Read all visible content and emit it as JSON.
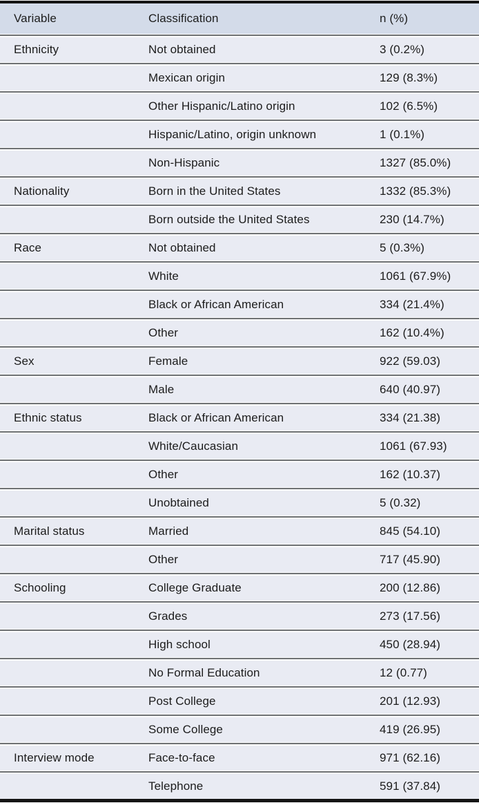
{
  "table": {
    "headers": [
      "Variable",
      "Classification",
      "n (%)"
    ],
    "rows": [
      {
        "variable": "Ethnicity",
        "classification": "Not obtained",
        "n_pct": "3 (0.2%)"
      },
      {
        "variable": "",
        "classification": "Mexican origin",
        "n_pct": "129 (8.3%)"
      },
      {
        "variable": "",
        "classification": "Other Hispanic/Latino origin",
        "n_pct": "102 (6.5%)"
      },
      {
        "variable": "",
        "classification": "Hispanic/Latino, origin unknown",
        "n_pct": "1 (0.1%)"
      },
      {
        "variable": "",
        "classification": "Non-Hispanic",
        "n_pct": "1327 (85.0%)"
      },
      {
        "variable": "Nationality",
        "classification": "Born in the United States",
        "n_pct": "1332 (85.3%)"
      },
      {
        "variable": "",
        "classification": "Born outside the United States",
        "n_pct": "230 (14.7%)"
      },
      {
        "variable": "Race",
        "classification": "Not obtained",
        "n_pct": "5 (0.3%)"
      },
      {
        "variable": "",
        "classification": "White",
        "n_pct": "1061 (67.9%)"
      },
      {
        "variable": "",
        "classification": "Black or African American",
        "n_pct": "334 (21.4%)"
      },
      {
        "variable": "",
        "classification": "Other",
        "n_pct": "162 (10.4%)"
      },
      {
        "variable": "Sex",
        "classification": "Female",
        "n_pct": "922 (59.03)"
      },
      {
        "variable": "",
        "classification": "Male",
        "n_pct": "640 (40.97)"
      },
      {
        "variable": "Ethnic status",
        "classification": "Black or African American",
        "n_pct": "334 (21.38)"
      },
      {
        "variable": "",
        "classification": "White/Caucasian",
        "n_pct": "1061 (67.93)"
      },
      {
        "variable": "",
        "classification": "Other",
        "n_pct": "162 (10.37)"
      },
      {
        "variable": "",
        "classification": "Unobtained",
        "n_pct": "5 (0.32)"
      },
      {
        "variable": "Marital status",
        "classification": "Married",
        "n_pct": "845 (54.10)"
      },
      {
        "variable": "",
        "classification": "Other",
        "n_pct": "717 (45.90)"
      },
      {
        "variable": "Schooling",
        "classification": "College Graduate",
        "n_pct": "200 (12.86)"
      },
      {
        "variable": "",
        "classification": "Grades",
        "n_pct": "273 (17.56)"
      },
      {
        "variable": "",
        "classification": "High school",
        "n_pct": "450 (28.94)"
      },
      {
        "variable": "",
        "classification": "No Formal Education",
        "n_pct": "12 (0.77)"
      },
      {
        "variable": "",
        "classification": "Post College",
        "n_pct": "201 (12.93)"
      },
      {
        "variable": "",
        "classification": "Some College",
        "n_pct": "419 (26.95)"
      },
      {
        "variable": "Interview mode",
        "classification": "Face-to-face",
        "n_pct": "971 (62.16)"
      },
      {
        "variable": "",
        "classification": "Telephone",
        "n_pct": "591 (37.84)"
      }
    ]
  },
  "colors": {
    "header_bg": "#d3dbe9",
    "row_bg": "#e9ebf3",
    "divider": "#6e7173",
    "frame": "#141414",
    "text": "#1c1c1c"
  }
}
